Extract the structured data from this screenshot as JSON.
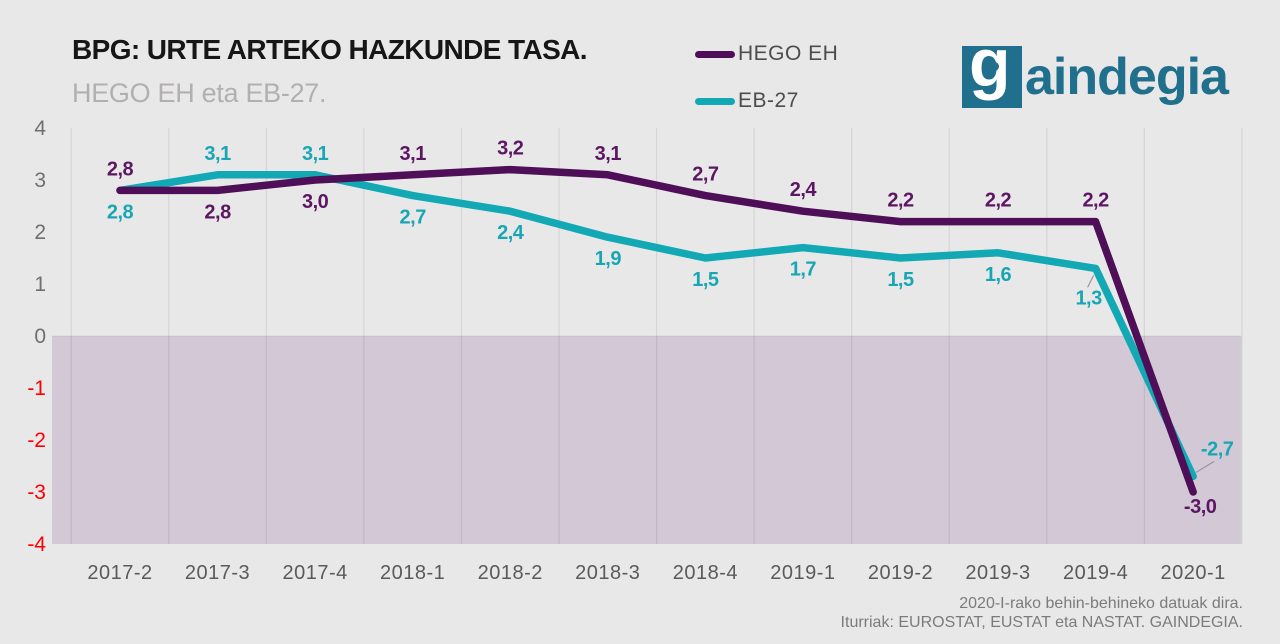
{
  "title": "BPG: URTE ARTEKO HAZKUNDE TASA.",
  "subtitle": "HEGO EH eta EB-27.",
  "legend": {
    "items": [
      {
        "label": "HEGO EH",
        "color": "#4e0f58"
      },
      {
        "label": "EB-27",
        "color": "#12a9b5"
      }
    ]
  },
  "logo": {
    "g": "g",
    "rest": "aindegia",
    "color": "#1f6f8d"
  },
  "footer": {
    "line1": "2020-I-rako behin-behineko datuak dira.",
    "line2": "Iturriak: EUROSTAT, EUSTAT eta NASTAT. GAINDEGIA."
  },
  "chart_data": {
    "type": "line",
    "title": "BPG: URTE ARTEKO HAZKUNDE TASA.",
    "subtitle": "HEGO EH eta EB-27.",
    "categories": [
      "2017-2",
      "2017-3",
      "2017-4",
      "2018-1",
      "2018-2",
      "2018-3",
      "2018-4",
      "2019-1",
      "2019-2",
      "2019-3",
      "2019-4",
      "2020-1"
    ],
    "series": [
      {
        "name": "HEGO EH",
        "color": "#4e0f58",
        "label_color": "#5c1763",
        "values": [
          2.8,
          2.8,
          3.0,
          3.1,
          3.2,
          3.1,
          2.7,
          2.4,
          2.2,
          2.2,
          2.2,
          -3.0
        ],
        "labels": [
          "2,8",
          "2,8",
          "3,0",
          "3,1",
          "3,2",
          "3,1",
          "2,7",
          "2,4",
          "2,2",
          "2,2",
          "2,2",
          "-3,0"
        ],
        "label_sides": [
          "above",
          "below",
          "below",
          "above",
          "above",
          "above",
          "above",
          "above",
          "above",
          "above",
          "above",
          "below"
        ],
        "label_overrides": {
          "11": {
            "dx": 7,
            "dy": 21
          }
        }
      },
      {
        "name": "EB-27",
        "color": "#12a9b5",
        "label_color": "#18a6b4",
        "values": [
          2.8,
          3.1,
          3.1,
          2.7,
          2.4,
          1.9,
          1.5,
          1.7,
          1.5,
          1.6,
          1.3,
          -2.7
        ],
        "labels": [
          "2,8",
          "3,1",
          "3,1",
          "2,7",
          "2,4",
          "1,9",
          "1,5",
          "1,7",
          "1,5",
          "1,6",
          "1,3",
          "-2,7"
        ],
        "label_sides": [
          "below",
          "above",
          "above",
          "below",
          "below",
          "below",
          "below",
          "below",
          "below",
          "below",
          "below",
          "above"
        ],
        "label_overrides": {
          "10": {
            "dx": -7,
            "dy": 36,
            "leader": [
              -8,
              19,
              -2,
              7
            ]
          },
          "11": {
            "dx": 24,
            "dy": -21,
            "leader": [
              3,
              -4,
              21,
              -15
            ]
          }
        }
      }
    ],
    "ylim": [
      -4,
      4
    ],
    "yticks": [
      4,
      3,
      2,
      1,
      0,
      -1,
      -2,
      -3,
      -4
    ],
    "ytick_color": "#6f6f6f",
    "ytick_negative_color": "#ff0000",
    "xtick_color": "#5a5a5a",
    "below_zero_fill": "#d3c8d6",
    "gridline_color": "rgba(0,0,0,0.075)",
    "leader_line_color": "#9a91a0",
    "grid": "vertical-only",
    "legend_position": "top-center",
    "decimal_separator": ","
  }
}
